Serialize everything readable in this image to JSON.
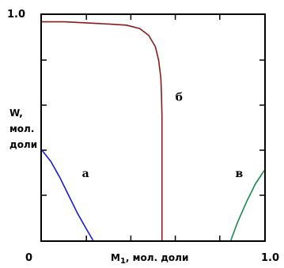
{
  "chart_data": {
    "type": "line",
    "xlabel_main": "M",
    "xlabel_sub": "1",
    "xlabel_rest": ", мол. доли",
    "ylabel_lines": [
      "W,",
      "мол.",
      "доли"
    ],
    "xlim": [
      0,
      1.0
    ],
    "ylim": [
      0,
      1.0
    ],
    "x_tick_labels": [
      {
        "value": 0,
        "label": "0"
      },
      {
        "value": 1.0,
        "label": "1.0"
      }
    ],
    "y_tick_labels": [
      {
        "value": 1.0,
        "label": "1.0"
      }
    ],
    "minor_ticks_x": [
      0.2,
      0.4,
      0.6,
      0.8
    ],
    "minor_ticks_y": [
      0.2,
      0.4,
      0.6,
      0.8
    ],
    "grid": false,
    "series": [
      {
        "name": "а",
        "color": "#1a1adc",
        "label_at": [
          0.18,
          0.28
        ],
        "points": [
          [
            0.0,
            0.4
          ],
          [
            0.04,
            0.35
          ],
          [
            0.08,
            0.28
          ],
          [
            0.12,
            0.2
          ],
          [
            0.16,
            0.12
          ],
          [
            0.2,
            0.05
          ],
          [
            0.23,
            0.0
          ]
        ]
      },
      {
        "name": "б",
        "color": "#8b1a1a",
        "label_at": [
          0.6,
          0.62
        ],
        "points": [
          [
            0.0,
            0.97
          ],
          [
            0.1,
            0.97
          ],
          [
            0.2,
            0.965
          ],
          [
            0.3,
            0.96
          ],
          [
            0.38,
            0.955
          ],
          [
            0.44,
            0.94
          ],
          [
            0.48,
            0.91
          ],
          [
            0.51,
            0.86
          ],
          [
            0.525,
            0.8
          ],
          [
            0.535,
            0.72
          ],
          [
            0.538,
            0.64
          ],
          [
            0.54,
            0.55
          ],
          [
            0.54,
            0.4
          ],
          [
            0.54,
            0.0
          ]
        ]
      },
      {
        "name": "в",
        "color": "#1a8a4a",
        "label_at": [
          0.87,
          0.28
        ],
        "points": [
          [
            0.85,
            0.0
          ],
          [
            0.88,
            0.08
          ],
          [
            0.92,
            0.17
          ],
          [
            0.96,
            0.25
          ],
          [
            1.0,
            0.31
          ]
        ]
      }
    ]
  }
}
